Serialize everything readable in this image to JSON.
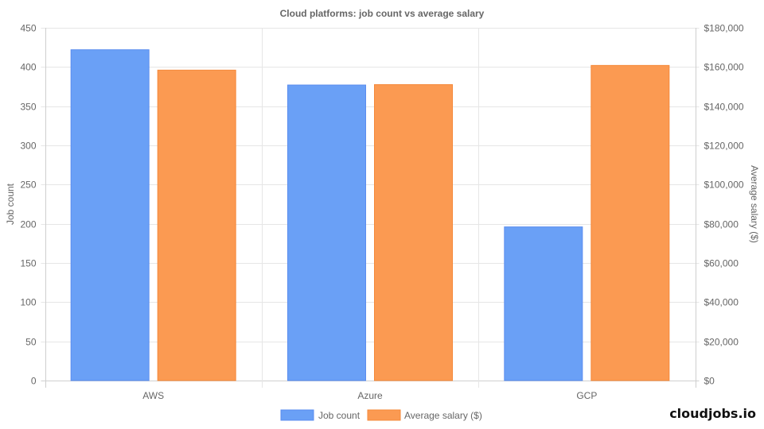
{
  "chart_data": {
    "type": "bar",
    "title": "Cloud platforms: job count vs average salary",
    "categories": [
      "AWS",
      "Azure",
      "GCP"
    ],
    "series": [
      {
        "name": "Job count",
        "axis": "left",
        "color": "#6aa0f6",
        "border": "#5b8def",
        "values": [
          422,
          377,
          196
        ]
      },
      {
        "name": "Average salary ($)",
        "axis": "right",
        "color": "#fb9a52",
        "border": "#f5893a",
        "values": [
          158400,
          151000,
          160800
        ]
      }
    ],
    "xlabel": "",
    "ylabel": "Job count",
    "ylabel_right": "Average salary ($)",
    "ylim": [
      0,
      450
    ],
    "ylim_right": [
      0,
      180000
    ],
    "yticks": [
      0,
      50,
      100,
      150,
      200,
      250,
      300,
      350,
      400,
      450
    ],
    "yticks_right": [
      "$0",
      "$20,000",
      "$40,000",
      "$60,000",
      "$80,000",
      "$100,000",
      "$120,000",
      "$140,000",
      "$160,000",
      "$180,000"
    ],
    "grid": true,
    "legend_position": "bottom"
  },
  "watermark": "cloudjobs.io"
}
